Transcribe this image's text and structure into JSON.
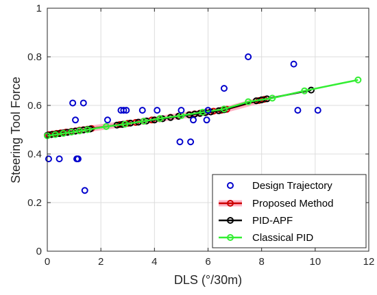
{
  "chart_data": {
    "type": "scatter",
    "title": "",
    "xlabel": "DLS (°/30m)",
    "ylabel": "Steering Tool Force",
    "xlim": [
      0,
      12
    ],
    "ylim": [
      0,
      1
    ],
    "xticks": [
      0,
      2,
      4,
      6,
      8,
      10,
      12
    ],
    "yticks": [
      0,
      0.2,
      0.4,
      0.6,
      0.8,
      1
    ],
    "xtick_labels": [
      "0",
      "2",
      "4",
      "6",
      "8",
      "10",
      "12"
    ],
    "ytick_labels": [
      "0",
      "0.2",
      "0.4",
      "0.6",
      "0.8",
      "1"
    ],
    "grid": true,
    "legend_position": "bottom-right",
    "series": [
      {
        "name": "Design Trajectory",
        "kind": "markers",
        "color": "#0000cc",
        "x": [
          0.05,
          0.45,
          0.95,
          1.05,
          1.1,
          1.15,
          1.35,
          1.4,
          2.25,
          2.75,
          2.85,
          2.95,
          3.55,
          4.1,
          4.95,
          5.0,
          5.35,
          5.45,
          5.95,
          6.0,
          6.6,
          7.5,
          9.2,
          9.35,
          10.1
        ],
        "y": [
          0.38,
          0.38,
          0.61,
          0.54,
          0.38,
          0.38,
          0.61,
          0.25,
          0.54,
          0.58,
          0.58,
          0.58,
          0.58,
          0.58,
          0.45,
          0.58,
          0.45,
          0.54,
          0.54,
          0.58,
          0.67,
          0.8,
          0.77,
          0.58,
          0.58
        ]
      },
      {
        "name": "Proposed Method",
        "kind": "line-markers",
        "color": "#cc0000",
        "band_color": "#ffb3c6",
        "x": [
          0.05,
          0.2,
          0.35,
          0.5,
          0.7,
          0.9,
          1.05,
          1.2,
          1.35,
          1.5,
          1.65,
          2.7,
          2.85,
          3.0,
          3.3,
          3.6,
          3.9,
          4.2,
          4.6,
          4.9,
          5.3,
          5.5,
          5.7,
          5.9,
          6.2,
          6.5,
          6.7,
          7.9,
          8.1
        ],
        "y": [
          0.48,
          0.482,
          0.485,
          0.487,
          0.49,
          0.493,
          0.495,
          0.498,
          0.5,
          0.502,
          0.505,
          0.521,
          0.523,
          0.526,
          0.53,
          0.535,
          0.54,
          0.545,
          0.551,
          0.556,
          0.562,
          0.565,
          0.568,
          0.571,
          0.576,
          0.58,
          0.584,
          0.62,
          0.625
        ]
      },
      {
        "name": "PID-APF",
        "kind": "line-markers",
        "color": "#000000",
        "x": [
          0.0,
          0.15,
          0.3,
          0.45,
          0.6,
          0.75,
          0.9,
          1.05,
          1.2,
          1.35,
          1.5,
          1.6,
          2.6,
          2.8,
          3.1,
          3.4,
          3.7,
          4.0,
          4.3,
          4.6,
          4.9,
          5.3,
          5.5,
          5.7,
          5.9,
          6.1,
          6.4,
          6.6,
          7.8,
          8.0,
          8.2,
          9.85
        ],
        "y": [
          0.477,
          0.48,
          0.482,
          0.484,
          0.487,
          0.489,
          0.492,
          0.494,
          0.496,
          0.499,
          0.501,
          0.503,
          0.519,
          0.522,
          0.527,
          0.531,
          0.536,
          0.54,
          0.545,
          0.55,
          0.555,
          0.561,
          0.564,
          0.567,
          0.57,
          0.573,
          0.578,
          0.582,
          0.619,
          0.623,
          0.627,
          0.663
        ]
      },
      {
        "name": "Classical PID",
        "kind": "line-markers",
        "color": "#33ee33",
        "x": [
          0.0,
          0.3,
          0.6,
          0.9,
          1.2,
          1.5,
          2.2,
          2.9,
          3.6,
          4.2,
          5.0,
          5.8,
          6.6,
          7.5,
          8.4,
          9.6,
          11.6
        ],
        "y": [
          0.475,
          0.48,
          0.485,
          0.49,
          0.495,
          0.5,
          0.513,
          0.523,
          0.535,
          0.546,
          0.558,
          0.572,
          0.585,
          0.615,
          0.63,
          0.66,
          0.705
        ]
      }
    ]
  }
}
